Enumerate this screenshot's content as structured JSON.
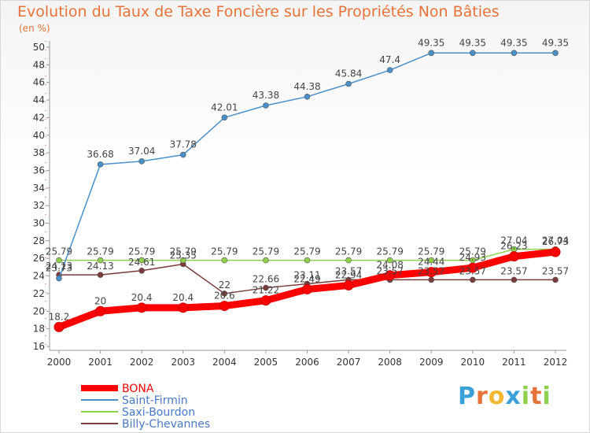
{
  "chart_data": {
    "type": "line",
    "title": "Evolution du Taux de Taxe Foncière sur les Propriétés Non Bâties",
    "subtitle": "(en %)",
    "x": [
      "2000",
      "2001",
      "2002",
      "2003",
      "2004",
      "2005",
      "2006",
      "2007",
      "2008",
      "2009",
      "2010",
      "2011",
      "2012"
    ],
    "ylim": [
      16,
      50
    ],
    "yticks": [
      16,
      18,
      20,
      22,
      24,
      26,
      28,
      30,
      32,
      34,
      36,
      38,
      40,
      42,
      44,
      46,
      48,
      50
    ],
    "grid": false,
    "legend_position": "bottom-left",
    "series": [
      {
        "name": "BONA",
        "color": "#ff0000",
        "values": [
          18.2,
          20,
          20.4,
          20.4,
          20.6,
          21.22,
          22.49,
          22.94,
          24.08,
          24.44,
          24.93,
          26.23,
          26.73
        ],
        "labels": [
          "18.2",
          "20",
          "20.4",
          "20.4",
          "20.6",
          "21.22",
          "22.49",
          "22.94",
          "24.08",
          "24.44",
          "24.93",
          "26.23",
          "26.73"
        ]
      },
      {
        "name": "Saint-Firmin",
        "color": "#4a90c8",
        "values": [
          23.73,
          36.68,
          37.04,
          37.78,
          42.01,
          43.38,
          44.38,
          45.84,
          47.4,
          49.35,
          49.35,
          49.35,
          49.35
        ],
        "labels": [
          "23.73",
          "36.68",
          "37.04",
          "37.78",
          "42.01",
          "43.38",
          "44.38",
          "45.84",
          "47.4",
          "49.35",
          "49.35",
          "49.35",
          "49.35"
        ]
      },
      {
        "name": "Saxi-Bourdon",
        "color": "#8ed04c",
        "values": [
          25.79,
          25.79,
          25.79,
          25.79,
          25.79,
          25.79,
          25.79,
          25.79,
          25.79,
          25.79,
          25.79,
          27.04,
          27.04
        ],
        "labels": [
          "25.79",
          "25.79",
          "25.79",
          "25.79",
          "25.79",
          "25.79",
          "25.79",
          "25.79",
          "25.79",
          "25.79",
          "25.79",
          "27.04",
          "27.04"
        ]
      },
      {
        "name": "Billy-Chevannes",
        "color": "#7a3b3b",
        "values": [
          24.13,
          24.13,
          24.61,
          25.35,
          22,
          22.66,
          23.11,
          23.57,
          23.57,
          23.57,
          23.57,
          23.57,
          23.57
        ],
        "labels": [
          "24.13",
          "24.13",
          "24.61",
          "25.35",
          "22",
          "22.66",
          "23.11",
          "23.57",
          "23.57",
          "23.57",
          "23.57",
          "23.57",
          "23.57"
        ]
      }
    ]
  },
  "logo": {
    "letters": [
      "P",
      "r",
      "o",
      "x",
      "i",
      "t",
      "i"
    ],
    "colors": [
      "#3aa0d8",
      "#e8733a",
      "#f2b632",
      "#3aa0d8",
      "#8ed04c",
      "#e8733a",
      "#8ed04c"
    ]
  }
}
